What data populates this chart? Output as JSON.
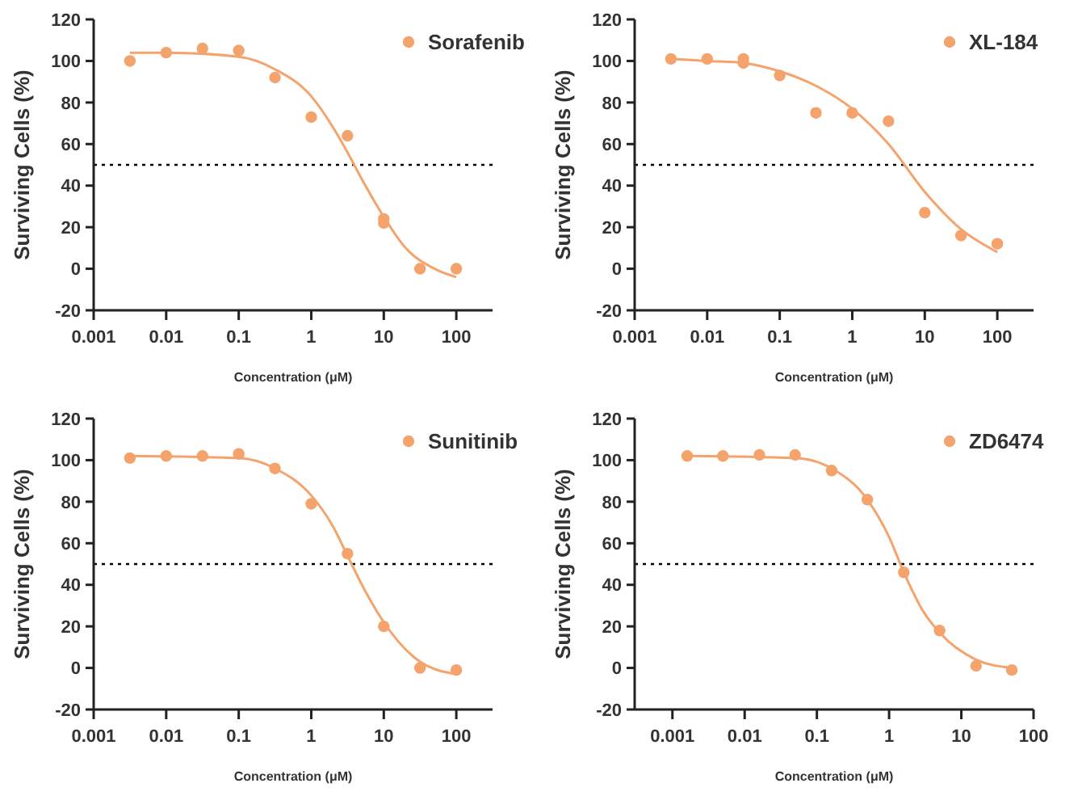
{
  "chart_data": [
    {
      "type": "scatter",
      "xlabel": "Concentration (μM)",
      "ylabel": "Surviving Cells (%)",
      "log": "x",
      "xlim": [
        0.001,
        316
      ],
      "xticks": [
        {
          "value": 0.001,
          "label": "0.001"
        },
        {
          "value": 0.01,
          "label": "0.01"
        },
        {
          "value": 0.1,
          "label": "0.1"
        },
        {
          "value": 1,
          "label": "1"
        },
        {
          "value": 10,
          "label": "10"
        },
        {
          "value": 100,
          "label": "100"
        }
      ],
      "ylim": [
        -20,
        120
      ],
      "yticks": [
        -20,
        0,
        20,
        40,
        60,
        80,
        100,
        120
      ],
      "legend": "top right",
      "grid": false,
      "ref_lines": [
        {
          "axis": "y",
          "value": 50,
          "color": "#000000",
          "line_style": "dotted"
        }
      ],
      "series": [
        {
          "name": "Sorafenib",
          "marker": "circle",
          "color": "#f5a36c",
          "x": [
            0.00316,
            0.01,
            0.0316,
            0.1,
            0.316,
            1,
            3.16,
            10,
            10,
            31.6,
            100
          ],
          "values": [
            100,
            104,
            106,
            105,
            92,
            73,
            64,
            24,
            22,
            0,
            0
          ]
        },
        {
          "type": "line",
          "color": "#f5a36c",
          "x": [
            0.00316,
            0.01,
            0.1,
            0.316,
            1,
            2,
            3.16,
            5,
            10,
            20,
            50,
            100
          ],
          "values": [
            104,
            104,
            102,
            96,
            83,
            68,
            56,
            43,
            25,
            10,
            0,
            -4
          ]
        }
      ]
    },
    {
      "type": "scatter",
      "xlabel": "Concentration (μM)",
      "ylabel": "Surviving Cells (%)",
      "log": "x",
      "xlim": [
        0.001,
        316
      ],
      "xticks": [
        {
          "value": 0.001,
          "label": "0.001"
        },
        {
          "value": 0.01,
          "label": "0.01"
        },
        {
          "value": 0.1,
          "label": "0.1"
        },
        {
          "value": 1,
          "label": "1"
        },
        {
          "value": 10,
          "label": "10"
        },
        {
          "value": 100,
          "label": "100"
        }
      ],
      "ylim": [
        -20,
        120
      ],
      "yticks": [
        -20,
        0,
        20,
        40,
        60,
        80,
        100,
        120
      ],
      "legend": "top right",
      "grid": false,
      "ref_lines": [
        {
          "axis": "y",
          "value": 50,
          "color": "#000000",
          "line_style": "dotted"
        }
      ],
      "series": [
        {
          "name": "XL-184",
          "marker": "circle",
          "color": "#f5a36c",
          "x": [
            0.00316,
            0.01,
            0.0316,
            0.0316,
            0.1,
            0.316,
            1,
            3.16,
            10,
            31.6,
            100
          ],
          "values": [
            101,
            101,
            101,
            99,
            93,
            75,
            75,
            71,
            27,
            16,
            12
          ]
        },
        {
          "type": "line",
          "color": "#f5a36c",
          "x": [
            0.00316,
            0.01,
            0.0316,
            0.1,
            0.316,
            1,
            3.16,
            10,
            31.6,
            100
          ],
          "values": [
            101,
            100,
            99,
            95,
            88,
            77,
            60,
            37,
            19,
            8
          ]
        }
      ]
    },
    {
      "type": "scatter",
      "xlabel": "Concentration (μM)",
      "ylabel": "Surviving Cells (%)",
      "log": "x",
      "xlim": [
        0.001,
        316
      ],
      "xticks": [
        {
          "value": 0.001,
          "label": "0.001"
        },
        {
          "value": 0.01,
          "label": "0.01"
        },
        {
          "value": 0.1,
          "label": "0.1"
        },
        {
          "value": 1,
          "label": "1"
        },
        {
          "value": 10,
          "label": "10"
        },
        {
          "value": 100,
          "label": "100"
        }
      ],
      "ylim": [
        -20,
        120
      ],
      "yticks": [
        -20,
        0,
        20,
        40,
        60,
        80,
        100,
        120
      ],
      "legend": "top right",
      "grid": false,
      "ref_lines": [
        {
          "axis": "y",
          "value": 50,
          "color": "#000000",
          "line_style": "dotted"
        }
      ],
      "series": [
        {
          "name": "Sunitinib",
          "marker": "circle",
          "color": "#f5a36c",
          "x": [
            0.00316,
            0.01,
            0.0316,
            0.1,
            0.316,
            1,
            3.16,
            10,
            31.6,
            100
          ],
          "values": [
            101,
            102,
            102,
            103,
            96,
            79,
            55,
            20,
            0,
            -1
          ]
        },
        {
          "type": "line",
          "color": "#f5a36c",
          "x": [
            0.00316,
            0.1,
            0.316,
            1,
            2,
            3.16,
            5,
            10,
            31.6,
            100
          ],
          "values": [
            102,
            101,
            96,
            83,
            68,
            54,
            40,
            22,
            3,
            -3
          ]
        }
      ]
    },
    {
      "type": "scatter",
      "xlabel": "Concentration (μM)",
      "ylabel": "Surviving Cells (%)",
      "log": "x",
      "xlim": [
        0.0003,
        100
      ],
      "xticks": [
        {
          "value": 0.001,
          "label": "0.001"
        },
        {
          "value": 0.01,
          "label": "0.01"
        },
        {
          "value": 0.1,
          "label": "0.1"
        },
        {
          "value": 1,
          "label": "1"
        },
        {
          "value": 10,
          "label": "10"
        },
        {
          "value": 100,
          "label": "100"
        }
      ],
      "ylim": [
        -20,
        120
      ],
      "yticks": [
        -20,
        0,
        20,
        40,
        60,
        80,
        100,
        120
      ],
      "legend": "top right",
      "grid": false,
      "ref_lines": [
        {
          "axis": "y",
          "value": 50,
          "color": "#000000",
          "line_style": "dotted"
        }
      ],
      "series": [
        {
          "name": "ZD6474",
          "marker": "circle",
          "color": "#f5a36c",
          "x": [
            0.0016,
            0.005,
            0.016,
            0.05,
            0.16,
            0.5,
            1.6,
            5,
            16,
            50
          ],
          "values": [
            102,
            102,
            102.5,
            102.5,
            95,
            81,
            46,
            18,
            1,
            -1
          ]
        },
        {
          "type": "line",
          "color": "#f5a36c",
          "x": [
            0.0016,
            0.05,
            0.16,
            0.5,
            1,
            1.6,
            3,
            5,
            16,
            50
          ],
          "values": [
            102,
            101,
            96,
            81,
            63,
            46,
            27,
            17,
            4,
            0
          ]
        }
      ]
    }
  ]
}
